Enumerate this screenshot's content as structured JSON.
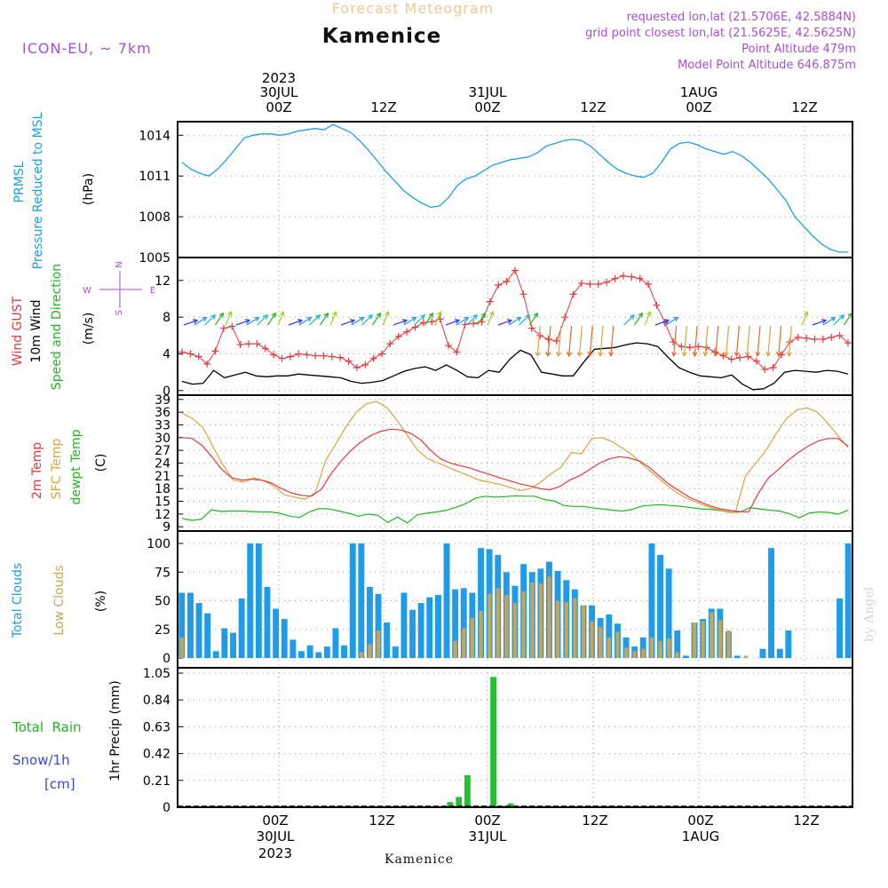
{
  "header": {
    "title_faint": "Forecast Meteogram",
    "title": "Kamenice",
    "model": "ICON-EU, ~ 7km",
    "requested": "requested lon,lat (21.5706E, 42.5884N)",
    "gridpoint": "grid point closest lon,lat (21.5625E, 42.5625N)",
    "point_alt": "Point Altitude 479m",
    "model_alt": "Model Point Altitude 646.875m"
  },
  "time_axis": {
    "top_year": "2023",
    "day_labels": [
      "30JUL",
      "31JUL",
      "1AUG"
    ],
    "hour_labels": [
      "00Z",
      "12Z",
      "00Z",
      "12Z",
      "00Z",
      "12Z"
    ],
    "bottom_year": "2023",
    "footer": "Kamenice"
  },
  "watermark": "by Angel",
  "colors": {
    "pressure": "#1ba1e2",
    "gust": "#e8383b",
    "wind": "#000000",
    "direction": "#22b622",
    "temp2m": "#e8383b",
    "sfc": "#d9a441",
    "dewpt": "#22b622",
    "total_clouds": "#1e9be9",
    "low_clouds": "#c8a455",
    "rain": "#22c22e",
    "snow": "#3b45e0",
    "legend_purple": "#a84fd6"
  },
  "panels": {
    "pressure": {
      "ylabel_1": "PRMSL",
      "ylabel_2": "Pressure Reduced to MSL",
      "unit": "(hPa)"
    },
    "wind": {
      "gust": "Wind GUST",
      "wind": "10m Wind",
      "dir": "Speed and Direction",
      "unit": "(m/s)",
      "compass_n": "N",
      "compass_s": "S",
      "compass_w": "W",
      "compass_e": "E"
    },
    "temp": {
      "t2m": "2m Temp",
      "sfc": "SFC Temp",
      "dew": "dewpt Temp",
      "unit": "(C)"
    },
    "clouds": {
      "total": "Total Clouds",
      "low": "Low Clouds",
      "unit": "(%)"
    },
    "precip": {
      "rain_label": "Total  Rain",
      "snow_label": "Snow/1h",
      "snow_unit": "[cm]",
      "ylabel": "1hr Precip (mm)"
    }
  },
  "chart_data": [
    {
      "type": "line",
      "ylim": [
        1005,
        1015
      ],
      "yticks": [
        "1005",
        "1008",
        "1011",
        "1014"
      ],
      "series": [
        {
          "values": [
            1012.0,
            1011.5,
            1011.2,
            1011.0,
            1011.5,
            1012.2,
            1013.0,
            1013.8,
            1014.0,
            1014.1,
            1014.1,
            1014.0,
            1014.1,
            1014.3,
            1014.4,
            1014.5,
            1014.4,
            1014.8,
            1014.5,
            1014.2,
            1013.6,
            1012.9,
            1012.1,
            1011.3,
            1010.6,
            1009.9,
            1009.4,
            1009.0,
            1008.7,
            1008.8,
            1009.4,
            1010.3,
            1010.8,
            1011.0,
            1011.4,
            1011.8,
            1012.0,
            1012.2,
            1012.3,
            1012.4,
            1012.7,
            1013.2,
            1013.4,
            1013.6,
            1013.7,
            1013.6,
            1013.2,
            1012.6,
            1012.0,
            1011.5,
            1011.2,
            1011.0,
            1010.9,
            1011.2,
            1012.0,
            1013.0,
            1013.4,
            1013.5,
            1013.3,
            1013.0,
            1012.8,
            1012.6,
            1012.8,
            1012.5,
            1012.0,
            1011.4,
            1010.8,
            1010.0,
            1009.2,
            1008.0,
            1007.3,
            1006.6,
            1006.0,
            1005.6,
            1005.4,
            1005.4
          ]
        }
      ]
    },
    {
      "type": "line",
      "ylim": [
        -0.5,
        14.5
      ],
      "yticks": [
        "0",
        "4",
        "8",
        "12"
      ],
      "series": [
        {
          "values": [
            4.2,
            4.0,
            3.7,
            2.9,
            4.3,
            6.8,
            7.0,
            5.0,
            5.1,
            5.1,
            4.6,
            3.9,
            3.5,
            3.7,
            4.0,
            3.9,
            3.8,
            3.8,
            3.7,
            3.6,
            3.2,
            2.5,
            2.8,
            3.5,
            4.0,
            5.1,
            5.9,
            6.4,
            6.9,
            7.4,
            7.5,
            7.8,
            4.9,
            4.2,
            7.2,
            7.3,
            7.5,
            9.7,
            11.5,
            11.9,
            13.1,
            10.5,
            6.8,
            6.0,
            5.6,
            5.4,
            8.0,
            10.5,
            11.7,
            11.6,
            11.6,
            11.8,
            12.2,
            12.5,
            12.4,
            12.2,
            11.6,
            9.3,
            7.4,
            5.3,
            4.8,
            4.7,
            4.8,
            4.7,
            4.2,
            3.8,
            3.4,
            3.6,
            3.7,
            3.2,
            2.3,
            2.5,
            3.9,
            5.3,
            5.8,
            5.7,
            5.6,
            5.6,
            5.8,
            6.0,
            5.2
          ]
        },
        {
          "values": [
            1.0,
            0.7,
            0.8,
            2.2,
            1.4,
            1.7,
            2.0,
            1.6,
            1.5,
            1.6,
            1.6,
            1.8,
            1.7,
            1.6,
            1.5,
            1.4,
            1.0,
            0.8,
            0.9,
            1.1,
            1.6,
            2.1,
            2.4,
            2.6,
            2.2,
            2.8,
            2.2,
            1.5,
            1.4,
            2.2,
            2.0,
            3.4,
            4.4,
            3.9,
            2.0,
            1.8,
            1.6,
            1.6,
            3.1,
            4.5,
            4.6,
            4.7,
            5.0,
            5.2,
            5.1,
            4.8,
            3.6,
            2.5,
            2.0,
            1.6,
            1.5,
            1.4,
            1.7,
            0.7,
            0.1,
            0.2,
            0.8,
            2.0,
            2.2,
            2.1,
            2.0,
            2.2,
            2.1,
            1.8
          ]
        }
      ]
    },
    {
      "type": "line",
      "ylim": [
        8,
        40
      ],
      "yticks": [
        "9",
        "12",
        "15",
        "18",
        "21",
        "24",
        "27",
        "30",
        "33",
        "36",
        "39"
      ],
      "series": [
        {
          "values": [
            30.0,
            29.8,
            28.2,
            25.5,
            22.5,
            20.5,
            20.0,
            20.2,
            20.0,
            19.3,
            18.0,
            17.0,
            16.4,
            16.2,
            17.8,
            21.5,
            24.5,
            27.0,
            29.0,
            30.5,
            31.5,
            32.0,
            31.8,
            31.0,
            29.5,
            27.0,
            25.0,
            24.0,
            23.4,
            22.8,
            22.0,
            21.3,
            20.5,
            19.8,
            19.1,
            18.6,
            18.0,
            17.7,
            18.5,
            20.0,
            21.0,
            22.5,
            24.0,
            25.0,
            25.5,
            25.2,
            24.5,
            23.0,
            21.0,
            19.0,
            17.5,
            16.0,
            15.0,
            14.0,
            13.3,
            12.9,
            12.6,
            12.5,
            17.0,
            20.5,
            22.5,
            24.7,
            26.5,
            28.0,
            29.2,
            29.8,
            29.8,
            28.0
          ]
        },
        {
          "values": [
            35.8,
            34.5,
            32.5,
            28.0,
            23.5,
            20.0,
            19.5,
            20.5,
            19.8,
            18.5,
            16.5,
            16.0,
            15.5,
            17.0,
            24.5,
            28.5,
            32.5,
            36.0,
            38.0,
            38.5,
            37.0,
            34.0,
            30.5,
            27.0,
            25.0,
            24.0,
            23.0,
            22.0,
            21.0,
            20.0,
            19.5,
            19.0,
            18.3,
            17.5,
            18.0,
            19.5,
            21.5,
            23.0,
            26.5,
            26.2,
            29.8,
            30.0,
            29.0,
            27.5,
            25.8,
            23.5,
            21.5,
            19.5,
            17.5,
            16.0,
            15.0,
            14.0,
            13.2,
            12.7,
            12.3,
            21.0,
            24.0,
            27.0,
            31.0,
            34.5,
            36.5,
            37.0,
            36.0,
            33.5,
            30.5,
            27.6
          ]
        },
        {
          "values": [
            11.0,
            10.5,
            10.8,
            13.0,
            12.6,
            12.7,
            12.7,
            12.6,
            12.5,
            12.5,
            12.2,
            11.5,
            11.2,
            12.5,
            13.3,
            13.2,
            12.7,
            12.2,
            11.5,
            12.0,
            11.7,
            10.0,
            11.3,
            9.9,
            11.8,
            12.2,
            12.5,
            12.9,
            13.6,
            14.5,
            15.8,
            16.2,
            16.0,
            16.1,
            16.3,
            16.2,
            16.2,
            15.4,
            15.1,
            14.0,
            13.8,
            13.8,
            13.4,
            13.2,
            12.9,
            12.7,
            13.1,
            13.9,
            14.1,
            14.2,
            14.0,
            13.8,
            13.5,
            13.2,
            13.1,
            12.8,
            12.4,
            12.5,
            13.5,
            13.2,
            12.9,
            12.7,
            12.1,
            11.1,
            12.2,
            12.5,
            12.4,
            12.0,
            12.9
          ]
        }
      ]
    },
    {
      "type": "bar",
      "ylim": [
        0,
        100
      ],
      "yticks": [
        "0",
        "25",
        "50",
        "75",
        "100"
      ],
      "series": [
        {
          "values": [
            57,
            57,
            48,
            39,
            6,
            26,
            22,
            52,
            100,
            100,
            62,
            43,
            34,
            16,
            6,
            11,
            5,
            10,
            26,
            11,
            100,
            100,
            62,
            56,
            31,
            10,
            57,
            42,
            48,
            53,
            55,
            100,
            60,
            61,
            57,
            96,
            95,
            90,
            75,
            63,
            82,
            75,
            78,
            84,
            76,
            68,
            60,
            46,
            46,
            35,
            38,
            30,
            18,
            10,
            18,
            100,
            90,
            78,
            24,
            2,
            31,
            34,
            43,
            43,
            23,
            2,
            0,
            0,
            8,
            96,
            8,
            24,
            0,
            0,
            0,
            0,
            0,
            52,
            100
          ]
        },
        {
          "values": [
            18,
            0,
            0,
            0,
            0,
            0,
            0,
            0,
            0,
            0,
            0,
            0,
            0,
            0,
            0,
            0,
            0,
            0,
            0,
            0,
            0,
            5,
            12,
            24,
            0,
            0,
            0,
            0,
            0,
            0,
            0,
            0,
            15,
            26,
            35,
            41,
            56,
            61,
            55,
            48,
            58,
            66,
            65,
            71,
            50,
            49,
            52,
            46,
            32,
            27,
            18,
            23,
            9,
            6,
            8,
            18,
            15,
            17,
            5,
            0,
            31,
            32,
            40,
            33,
            24,
            0,
            2,
            0,
            0,
            0,
            0,
            0,
            0,
            0,
            0,
            0,
            0,
            0,
            0
          ]
        }
      ]
    },
    {
      "type": "bar",
      "ylim": [
        0,
        1.05
      ],
      "yticks": [
        "0",
        "0.21",
        "0.42",
        "0.63",
        "0.84",
        "1.05"
      ],
      "series": [
        {
          "values": [
            0,
            0,
            0,
            0,
            0,
            0,
            0,
            0,
            0,
            0,
            0,
            0,
            0,
            0,
            0,
            0,
            0,
            0,
            0,
            0,
            0,
            0,
            0,
            0,
            0,
            0,
            0,
            0,
            0,
            0,
            0,
            0.04,
            0.08,
            0.25,
            0,
            0,
            1.02,
            0.01,
            0.03,
            0,
            0,
            0,
            0,
            0,
            0,
            0,
            0,
            0,
            0,
            0,
            0,
            0,
            0,
            0,
            0,
            0,
            0,
            0,
            0,
            0,
            0,
            0,
            0,
            0,
            0,
            0,
            0,
            0,
            0,
            0,
            0,
            0,
            0,
            0,
            0,
            0,
            0,
            0
          ]
        }
      ]
    }
  ]
}
